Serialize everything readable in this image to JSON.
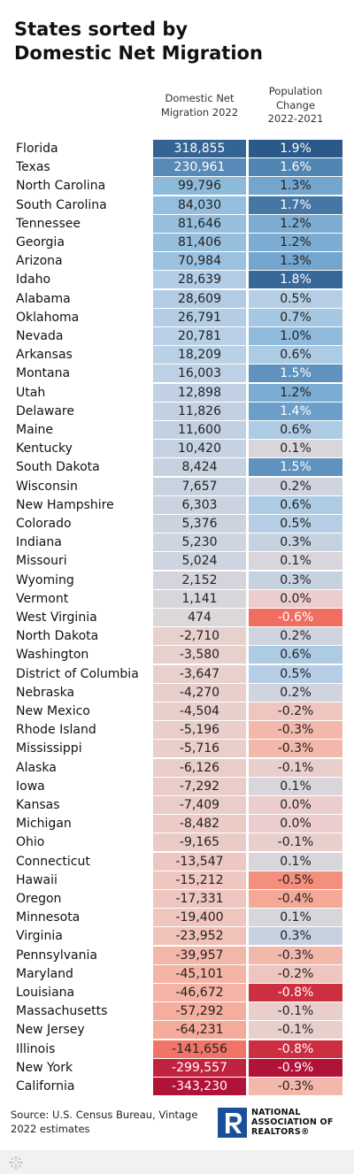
{
  "title_line1": "States sorted by",
  "title_line2": "Domestic Net Migration",
  "columns": {
    "col1": [
      "Domestic Net",
      "Migration 2022"
    ],
    "col2": [
      "Population",
      "Change",
      "2022-2021"
    ]
  },
  "footer": {
    "source": "Source: U.S. Census Bureau, Vintage 2022 estimates",
    "logo": [
      "NATIONAL",
      "ASSOCIATION OF",
      "REALTORS®"
    ]
  },
  "icons": {
    "bottom_bar": "datawrapper-logo-icon",
    "logo": "realtor-r-logo-icon"
  },
  "colors": {
    "positive_dark": "#2b5a8a",
    "neutral": "#ddd0d0",
    "negative_dark": "#b01238"
  },
  "chart_data": {
    "type": "table",
    "columns": [
      "Domestic Net Migration 2022",
      "Population Change 2022-2021"
    ],
    "rows": [
      {
        "state": "Florida",
        "migration": "318,855",
        "change": "1.9%",
        "m": 318855,
        "c": 1.9
      },
      {
        "state": "Texas",
        "migration": "230,961",
        "change": "1.6%",
        "m": 230961,
        "c": 1.6
      },
      {
        "state": "North Carolina",
        "migration": "99,796",
        "change": "1.3%",
        "m": 99796,
        "c": 1.3
      },
      {
        "state": "South Carolina",
        "migration": "84,030",
        "change": "1.7%",
        "m": 84030,
        "c": 1.7
      },
      {
        "state": "Tennessee",
        "migration": "81,646",
        "change": "1.2%",
        "m": 81646,
        "c": 1.2
      },
      {
        "state": "Georgia",
        "migration": "81,406",
        "change": "1.2%",
        "m": 81406,
        "c": 1.2
      },
      {
        "state": "Arizona",
        "migration": "70,984",
        "change": "1.3%",
        "m": 70984,
        "c": 1.3
      },
      {
        "state": "Idaho",
        "migration": "28,639",
        "change": "1.8%",
        "m": 28639,
        "c": 1.8
      },
      {
        "state": "Alabama",
        "migration": "28,609",
        "change": "0.5%",
        "m": 28609,
        "c": 0.5
      },
      {
        "state": "Oklahoma",
        "migration": "26,791",
        "change": "0.7%",
        "m": 26791,
        "c": 0.7
      },
      {
        "state": "Nevada",
        "migration": "20,781",
        "change": "1.0%",
        "m": 20781,
        "c": 1.0
      },
      {
        "state": "Arkansas",
        "migration": "18,209",
        "change": "0.6%",
        "m": 18209,
        "c": 0.6
      },
      {
        "state": "Montana",
        "migration": "16,003",
        "change": "1.5%",
        "m": 16003,
        "c": 1.5
      },
      {
        "state": "Utah",
        "migration": "12,898",
        "change": "1.2%",
        "m": 12898,
        "c": 1.2
      },
      {
        "state": "Delaware",
        "migration": "11,826",
        "change": "1.4%",
        "m": 11826,
        "c": 1.4
      },
      {
        "state": "Maine",
        "migration": "11,600",
        "change": "0.6%",
        "m": 11600,
        "c": 0.6
      },
      {
        "state": "Kentucky",
        "migration": "10,420",
        "change": "0.1%",
        "m": 10420,
        "c": 0.1
      },
      {
        "state": "South Dakota",
        "migration": "8,424",
        "change": "1.5%",
        "m": 8424,
        "c": 1.5
      },
      {
        "state": "Wisconsin",
        "migration": "7,657",
        "change": "0.2%",
        "m": 7657,
        "c": 0.2
      },
      {
        "state": "New Hampshire",
        "migration": "6,303",
        "change": "0.6%",
        "m": 6303,
        "c": 0.6
      },
      {
        "state": "Colorado",
        "migration": "5,376",
        "change": "0.5%",
        "m": 5376,
        "c": 0.5
      },
      {
        "state": "Indiana",
        "migration": "5,230",
        "change": "0.3%",
        "m": 5230,
        "c": 0.3
      },
      {
        "state": "Missouri",
        "migration": "5,024",
        "change": "0.1%",
        "m": 5024,
        "c": 0.1
      },
      {
        "state": "Wyoming",
        "migration": "2,152",
        "change": "0.3%",
        "m": 2152,
        "c": 0.3
      },
      {
        "state": "Vermont",
        "migration": "1,141",
        "change": "0.0%",
        "m": 1141,
        "c": 0.0
      },
      {
        "state": "West Virginia",
        "migration": "474",
        "change": "-0.6%",
        "m": 474,
        "c": -0.6
      },
      {
        "state": "North Dakota",
        "migration": "-2,710",
        "change": "0.2%",
        "m": -2710,
        "c": 0.2
      },
      {
        "state": "Washington",
        "migration": "-3,580",
        "change": "0.6%",
        "m": -3580,
        "c": 0.6
      },
      {
        "state": "District of Columbia",
        "migration": "-3,647",
        "change": "0.5%",
        "m": -3647,
        "c": 0.5
      },
      {
        "state": "Nebraska",
        "migration": "-4,270",
        "change": "0.2%",
        "m": -4270,
        "c": 0.2
      },
      {
        "state": "New Mexico",
        "migration": "-4,504",
        "change": "-0.2%",
        "m": -4504,
        "c": -0.2
      },
      {
        "state": "Rhode Island",
        "migration": "-5,196",
        "change": "-0.3%",
        "m": -5196,
        "c": -0.3
      },
      {
        "state": "Mississippi",
        "migration": "-5,716",
        "change": "-0.3%",
        "m": -5716,
        "c": -0.3
      },
      {
        "state": "Alaska",
        "migration": "-6,126",
        "change": "-0.1%",
        "m": -6126,
        "c": -0.1
      },
      {
        "state": "Iowa",
        "migration": "-7,292",
        "change": "0.1%",
        "m": -7292,
        "c": 0.1
      },
      {
        "state": "Kansas",
        "migration": "-7,409",
        "change": "0.0%",
        "m": -7409,
        "c": 0.0
      },
      {
        "state": "Michigan",
        "migration": "-8,482",
        "change": "0.0%",
        "m": -8482,
        "c": 0.0
      },
      {
        "state": "Ohio",
        "migration": "-9,165",
        "change": "-0.1%",
        "m": -9165,
        "c": -0.1
      },
      {
        "state": "Connecticut",
        "migration": "-13,547",
        "change": "0.1%",
        "m": -13547,
        "c": 0.1
      },
      {
        "state": "Hawaii",
        "migration": "-15,212",
        "change": "-0.5%",
        "m": -15212,
        "c": -0.5
      },
      {
        "state": "Oregon",
        "migration": "-17,331",
        "change": "-0.4%",
        "m": -17331,
        "c": -0.4
      },
      {
        "state": "Minnesota",
        "migration": "-19,400",
        "change": "0.1%",
        "m": -19400,
        "c": 0.1
      },
      {
        "state": "Virginia",
        "migration": "-23,952",
        "change": "0.3%",
        "m": -23952,
        "c": 0.3
      },
      {
        "state": "Pennsylvania",
        "migration": "-39,957",
        "change": "-0.3%",
        "m": -39957,
        "c": -0.3
      },
      {
        "state": "Maryland",
        "migration": "-45,101",
        "change": "-0.2%",
        "m": -45101,
        "c": -0.2
      },
      {
        "state": "Louisiana",
        "migration": "-46,672",
        "change": "-0.8%",
        "m": -46672,
        "c": -0.8
      },
      {
        "state": "Massachusetts",
        "migration": "-57,292",
        "change": "-0.1%",
        "m": -57292,
        "c": -0.1
      },
      {
        "state": "New Jersey",
        "migration": "-64,231",
        "change": "-0.1%",
        "m": -64231,
        "c": -0.1
      },
      {
        "state": "Illinois",
        "migration": "-141,656",
        "change": "-0.8%",
        "m": -141656,
        "c": -0.8
      },
      {
        "state": "New York",
        "migration": "-299,557",
        "change": "-0.9%",
        "m": -299557,
        "c": -0.9
      },
      {
        "state": "California",
        "migration": "-343,230",
        "change": "-0.3%",
        "m": -343230,
        "c": -0.3
      }
    ]
  }
}
